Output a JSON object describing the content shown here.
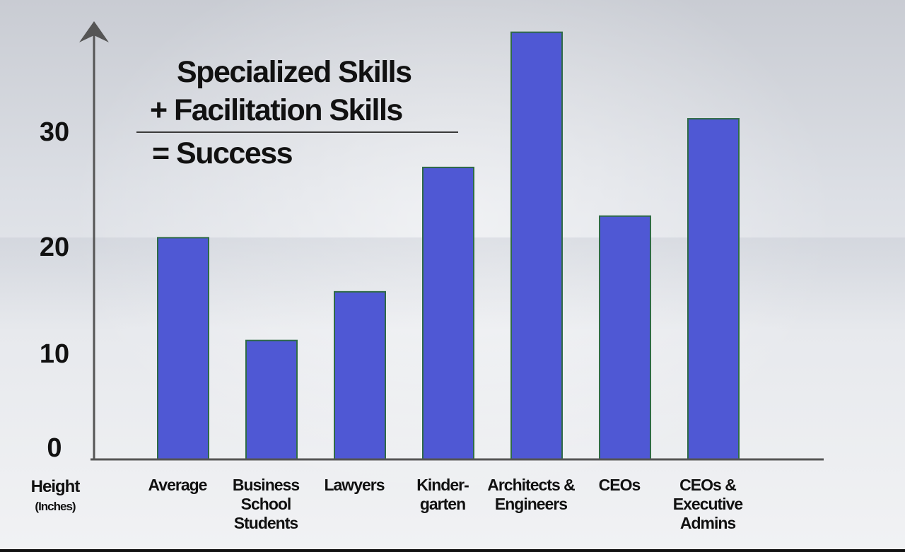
{
  "chart_data": {
    "type": "bar",
    "categories": [
      [
        "Average"
      ],
      [
        "Business",
        "School",
        "Students"
      ],
      [
        "Lawyers"
      ],
      [
        "Kinder-",
        "garten"
      ],
      [
        "Architects &",
        "Engineers"
      ],
      [
        "CEOs"
      ],
      [
        "CEOs &",
        "Executive",
        "Admins"
      ]
    ],
    "values": [
      20.5,
      11,
      15.5,
      27,
      39.5,
      22.5,
      31.5
    ],
    "ylim": [
      0,
      40
    ],
    "yticks": [
      "0",
      "10",
      "20",
      "30"
    ],
    "ylabel": "Height",
    "yunit": "(Inches)",
    "grid": false,
    "bar_color": "#4f58d4",
    "bar_edge_color": "#2f6b46"
  },
  "annotation": {
    "line1": "Specialized Skills",
    "line2": "+ Facilitation Skills",
    "line3": "= Success"
  }
}
